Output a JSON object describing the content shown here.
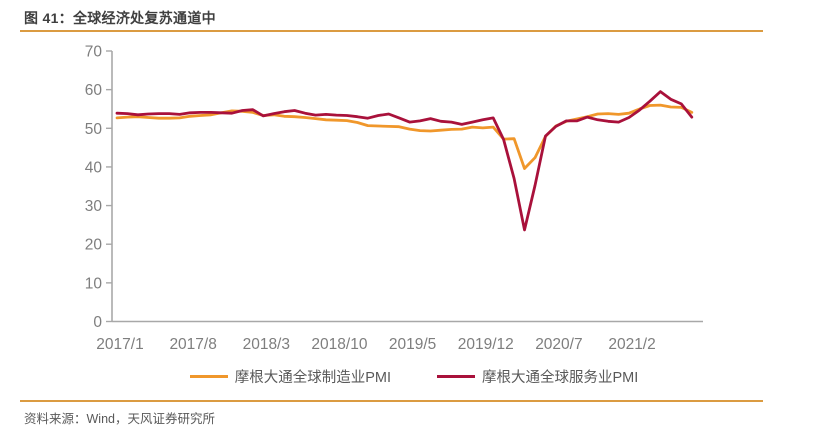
{
  "header": {
    "title": "图 41：全球经济处复苏通道中"
  },
  "footer": {
    "source": "资料来源：Wind，天风证券研究所"
  },
  "style": {
    "rule_color": "#db9b41",
    "axis_color": "#a8a8a8",
    "axis_label_color": "#7e7e7e",
    "title_color": "#3f3f3f",
    "text_color": "#595959"
  },
  "chart_data": {
    "type": "line",
    "title": "",
    "xlabel": "",
    "ylabel": "",
    "ylim": [
      0,
      70
    ],
    "y_ticks": [
      0,
      10,
      20,
      30,
      40,
      50,
      60,
      70
    ],
    "grid": false,
    "legend_position": "bottom",
    "x_start": "2017/1",
    "frequency": "monthly",
    "x_tick_labels": [
      "2017/1",
      "2017/8",
      "2018/3",
      "2018/10",
      "2019/5",
      "2019/12",
      "2020/7",
      "2021/2"
    ],
    "x_tick_month_indices": [
      0,
      7,
      14,
      21,
      28,
      35,
      42,
      49
    ],
    "series": [
      {
        "name": "摩根大通全球制造业PMI",
        "color": "#f0972b",
        "values": [
          52.7,
          52.9,
          53.0,
          52.8,
          52.6,
          52.6,
          52.7,
          53.1,
          53.3,
          53.5,
          54.0,
          54.5,
          54.4,
          54.1,
          53.3,
          53.5,
          53.1,
          53.0,
          52.8,
          52.5,
          52.2,
          52.1,
          52.0,
          51.5,
          50.7,
          50.6,
          50.5,
          50.4,
          49.8,
          49.4,
          49.3,
          49.5,
          49.7,
          49.8,
          50.3,
          50.1,
          50.3,
          47.2,
          47.3,
          39.6,
          42.4,
          47.9,
          50.6,
          51.8,
          52.4,
          53.0,
          53.7,
          53.8,
          53.6,
          53.9,
          55.0,
          55.9,
          56.0,
          55.5,
          55.4,
          54.1
        ]
      },
      {
        "name": "摩根大通全球服务业PMI",
        "color": "#a9113b",
        "values": [
          53.9,
          53.8,
          53.5,
          53.7,
          53.8,
          53.8,
          53.6,
          54.0,
          54.1,
          54.1,
          54.0,
          53.9,
          54.6,
          54.8,
          53.2,
          53.8,
          54.3,
          54.6,
          53.9,
          53.4,
          53.6,
          53.4,
          53.3,
          53.0,
          52.6,
          53.3,
          53.7,
          52.7,
          51.6,
          51.9,
          52.5,
          51.8,
          51.6,
          51.0,
          51.6,
          52.2,
          52.7,
          47.1,
          37.0,
          23.7,
          35.2,
          48.0,
          50.5,
          51.9,
          51.9,
          52.9,
          52.2,
          51.8,
          51.6,
          52.8,
          54.7,
          57.0,
          59.5,
          57.5,
          56.3,
          52.9
        ]
      }
    ]
  }
}
